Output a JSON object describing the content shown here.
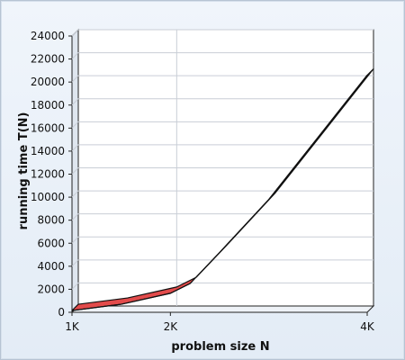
{
  "chart_data": {
    "type": "area",
    "title": "",
    "xlabel": "problem size N",
    "ylabel": "running time T(N)",
    "x_tick_labels": [
      "1K",
      "2K",
      "4K"
    ],
    "y_tick_labels": [
      "0",
      "2000",
      "4000",
      "6000",
      "8000",
      "10000",
      "12000",
      "14000",
      "16000",
      "18000",
      "20000",
      "22000",
      "24000"
    ],
    "ylim": [
      0,
      24000
    ],
    "grid": true,
    "series": [
      {
        "color": "#e24b4b",
        "points": [
          [
            "1K",
            150
          ],
          [
            "1.5K",
            700
          ],
          [
            "2K",
            1650
          ],
          [
            "2.2K",
            2500
          ],
          [
            "2.5K",
            5200
          ],
          [
            "3K",
            9800
          ],
          [
            "3.5K",
            15200
          ],
          [
            "4K",
            20600
          ]
        ]
      }
    ]
  }
}
